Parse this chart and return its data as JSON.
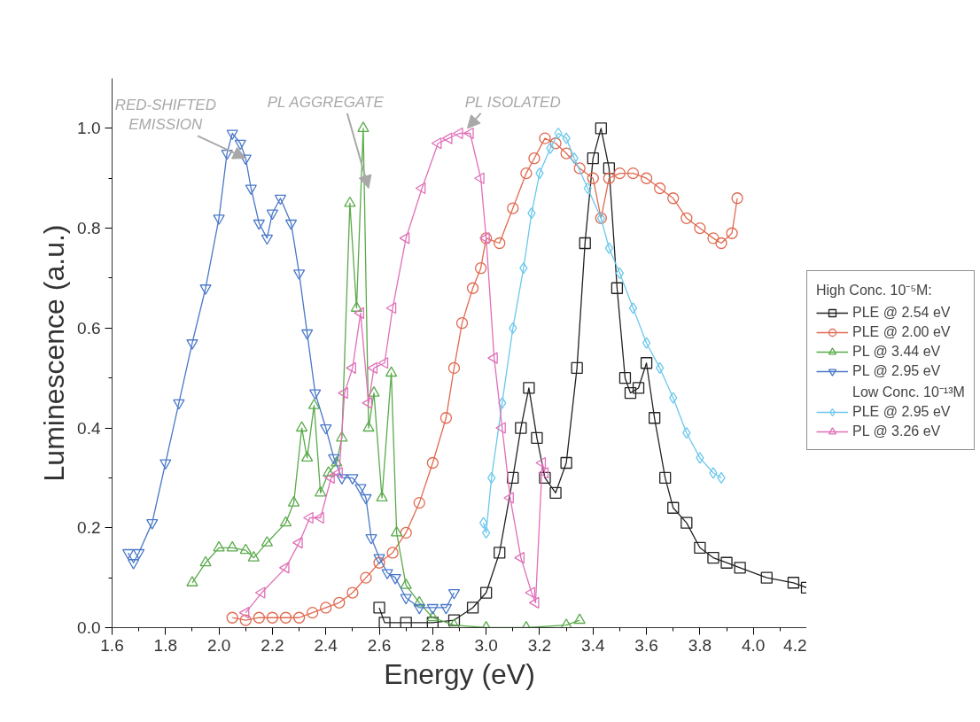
{
  "chart_data": {
    "type": "line",
    "xlabel": "Energy (eV)",
    "ylabel": "Luminescence (a.u.)",
    "xlim": [
      1.6,
      4.2
    ],
    "xticks": [
      1.6,
      1.8,
      {
        "value": 2,
        "label": "2.0"
      },
      2.2,
      2.4,
      2.6,
      2.8,
      {
        "value": 3,
        "label": "3.0"
      },
      3.2,
      3.4,
      3.6,
      3.8,
      {
        "value": 4,
        "label": "4.0"
      },
      4.2
    ],
    "ylim": [
      0,
      1.1
    ],
    "yticks": [
      {
        "value": 0,
        "label": "0.0"
      },
      0.2,
      0.4,
      0.6,
      0.8,
      {
        "value": 1,
        "label": "1.0"
      }
    ],
    "grid": false,
    "legend": "right",
    "legend_title": "High Conc. 10⁻⁵M:",
    "annotations": [
      {
        "text": "RED-SHIFTED\nEMISSION",
        "x": 2.1,
        "y": 0.94
      },
      {
        "text": "PL AGGREGATE",
        "x": 2.56,
        "y": 0.88
      },
      {
        "text": "PL ISOLATED",
        "x": 2.93,
        "y": 1.0
      },
      "Low Conc. 10⁻¹³M"
    ],
    "series": [
      {
        "name": "PLE @ 2.54 eV",
        "color": "#222222",
        "marker": "square",
        "x": [
          2.6,
          2.62,
          2.7,
          2.8,
          2.88,
          2.95,
          3.0,
          3.05,
          3.1,
          3.13,
          3.16,
          3.19,
          3.22,
          3.26,
          3.3,
          3.34,
          3.37,
          3.4,
          3.43,
          3.46,
          3.49,
          3.52,
          3.54,
          3.57,
          3.6,
          3.63,
          3.67,
          3.7,
          3.75,
          3.8,
          3.85,
          3.9,
          3.95,
          4.05,
          4.15,
          4.2
        ],
        "values": [
          0.04,
          0.01,
          0.01,
          0.01,
          0.015,
          0.04,
          0.07,
          0.15,
          0.3,
          0.4,
          0.48,
          0.38,
          0.3,
          0.27,
          0.33,
          0.52,
          0.77,
          0.94,
          1.0,
          0.92,
          0.68,
          0.5,
          0.47,
          0.48,
          0.53,
          0.42,
          0.3,
          0.24,
          0.21,
          0.16,
          0.14,
          0.13,
          0.12,
          0.1,
          0.09,
          0.08
        ]
      },
      {
        "name": "PLE @ 2.00 eV",
        "color": "#e06a50",
        "marker": "circle",
        "x": [
          2.05,
          2.1,
          2.15,
          2.2,
          2.25,
          2.3,
          2.35,
          2.4,
          2.45,
          2.5,
          2.55,
          2.6,
          2.65,
          2.7,
          2.75,
          2.8,
          2.85,
          2.88,
          2.91,
          2.95,
          2.98,
          3.0,
          3.05,
          3.1,
          3.15,
          3.18,
          3.22,
          3.26,
          3.3,
          3.35,
          3.4,
          3.43,
          3.46,
          3.5,
          3.55,
          3.6,
          3.65,
          3.7,
          3.75,
          3.8,
          3.85,
          3.88,
          3.92,
          3.94
        ],
        "values": [
          0.02,
          0.015,
          0.02,
          0.02,
          0.02,
          0.02,
          0.03,
          0.04,
          0.05,
          0.07,
          0.1,
          0.13,
          0.15,
          0.19,
          0.25,
          0.33,
          0.42,
          0.52,
          0.61,
          0.68,
          0.72,
          0.78,
          0.77,
          0.84,
          0.91,
          0.94,
          0.98,
          0.97,
          0.95,
          0.92,
          0.9,
          0.82,
          0.9,
          0.91,
          0.91,
          0.9,
          0.88,
          0.86,
          0.82,
          0.8,
          0.78,
          0.77,
          0.79,
          0.86
        ]
      },
      {
        "name": "PL @ 3.44 eV",
        "color": "#5aaa4a",
        "marker": "triangle",
        "x": [
          1.9,
          1.95,
          2.0,
          2.05,
          2.1,
          2.13,
          2.18,
          2.25,
          2.28,
          2.31,
          2.33,
          2.356,
          2.38,
          2.41,
          2.44,
          2.46,
          2.49,
          2.515,
          2.54,
          2.56,
          2.58,
          2.61,
          2.645,
          2.665,
          2.7,
          2.75,
          2.8,
          2.88,
          3.0,
          3.15,
          3.3,
          3.35
        ],
        "values": [
          0.09,
          0.13,
          0.16,
          0.16,
          0.155,
          0.14,
          0.17,
          0.21,
          0.25,
          0.4,
          0.34,
          0.445,
          0.27,
          0.31,
          0.33,
          0.38,
          0.85,
          0.64,
          1.0,
          0.4,
          0.47,
          0.26,
          0.51,
          0.19,
          0.085,
          0.05,
          0.02,
          0.005,
          0.0,
          0.0,
          0.005,
          0.015
        ]
      },
      {
        "name": "PL @ 2.95 eV",
        "color": "#4a78c8",
        "marker": "triangle_down",
        "x": [
          1.66,
          1.68,
          1.7,
          1.75,
          1.8,
          1.85,
          1.9,
          1.95,
          2.0,
          2.03,
          2.05,
          2.08,
          2.1,
          2.12,
          2.15,
          2.18,
          2.2,
          2.23,
          2.27,
          2.3,
          2.33,
          2.36,
          2.4,
          2.43,
          2.46,
          2.5,
          2.53,
          2.55,
          2.57,
          2.6,
          2.63,
          2.66,
          2.7,
          2.75,
          2.8,
          2.85,
          2.88
        ],
        "values": [
          0.15,
          0.13,
          0.15,
          0.21,
          0.33,
          0.45,
          0.57,
          0.68,
          0.82,
          0.95,
          0.99,
          0.97,
          0.94,
          0.88,
          0.81,
          0.78,
          0.83,
          0.86,
          0.81,
          0.71,
          0.59,
          0.47,
          0.4,
          0.34,
          0.3,
          0.3,
          0.28,
          0.26,
          0.18,
          0.14,
          0.11,
          0.1,
          0.06,
          0.04,
          0.04,
          0.04,
          0.07
        ]
      },
      {
        "name": "PLE @ 2.95 eV",
        "color": "#6cc8ec",
        "marker": "diamond",
        "x": [
          2.99,
          3.0,
          3.02,
          3.06,
          3.1,
          3.14,
          3.17,
          3.2,
          3.24,
          3.27,
          3.3,
          3.33,
          3.38,
          3.43,
          3.46,
          3.5,
          3.55,
          3.6,
          3.65,
          3.7,
          3.75,
          3.8,
          3.85,
          3.88
        ],
        "values": [
          0.21,
          0.19,
          0.3,
          0.45,
          0.6,
          0.72,
          0.83,
          0.91,
          0.96,
          0.99,
          0.98,
          0.94,
          0.88,
          0.82,
          0.76,
          0.71,
          0.64,
          0.57,
          0.52,
          0.46,
          0.39,
          0.34,
          0.31,
          0.3
        ]
      },
      {
        "name": "PL @ 3.26 eV",
        "color": "#e070b8",
        "marker": "triangle_left",
        "x": [
          2.1,
          2.16,
          2.25,
          2.3,
          2.34,
          2.38,
          2.42,
          2.45,
          2.47,
          2.5,
          2.53,
          2.56,
          2.58,
          2.62,
          2.65,
          2.7,
          2.76,
          2.82,
          2.86,
          2.9,
          2.94,
          2.98,
          3.0,
          3.03,
          3.06,
          3.09,
          3.13,
          3.17,
          3.185,
          3.21,
          3.22
        ],
        "values": [
          0.03,
          0.07,
          0.12,
          0.17,
          0.22,
          0.22,
          0.3,
          0.31,
          0.47,
          0.52,
          0.63,
          0.45,
          0.52,
          0.53,
          0.64,
          0.78,
          0.88,
          0.97,
          0.98,
          0.99,
          0.99,
          0.9,
          0.78,
          0.54,
          0.4,
          0.26,
          0.14,
          0.07,
          0.05,
          0.33,
          0.31
        ]
      }
    ]
  }
}
